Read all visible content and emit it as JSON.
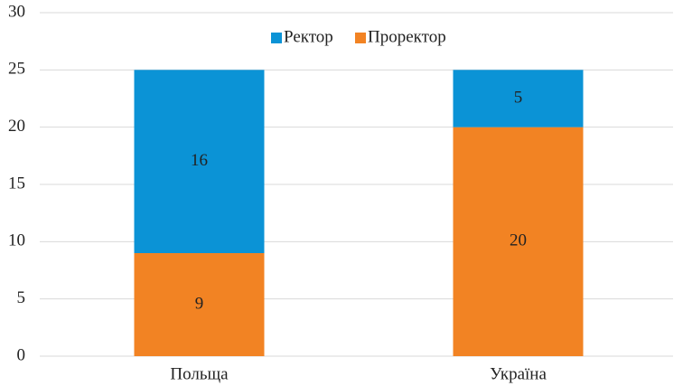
{
  "chart_data": {
    "type": "stacked_bar",
    "categories": [
      "Польща",
      "Україна"
    ],
    "series": [
      {
        "name": "Ректор",
        "color": "#0b93d6",
        "values": [
          16,
          5
        ]
      },
      {
        "name": "Проректор",
        "color": "#f28323",
        "values": [
          9,
          20
        ]
      }
    ],
    "ylim": [
      0,
      30
    ],
    "yticks": [
      0,
      5,
      10,
      15,
      20,
      25,
      30
    ],
    "grid": true,
    "legend": "top"
  }
}
